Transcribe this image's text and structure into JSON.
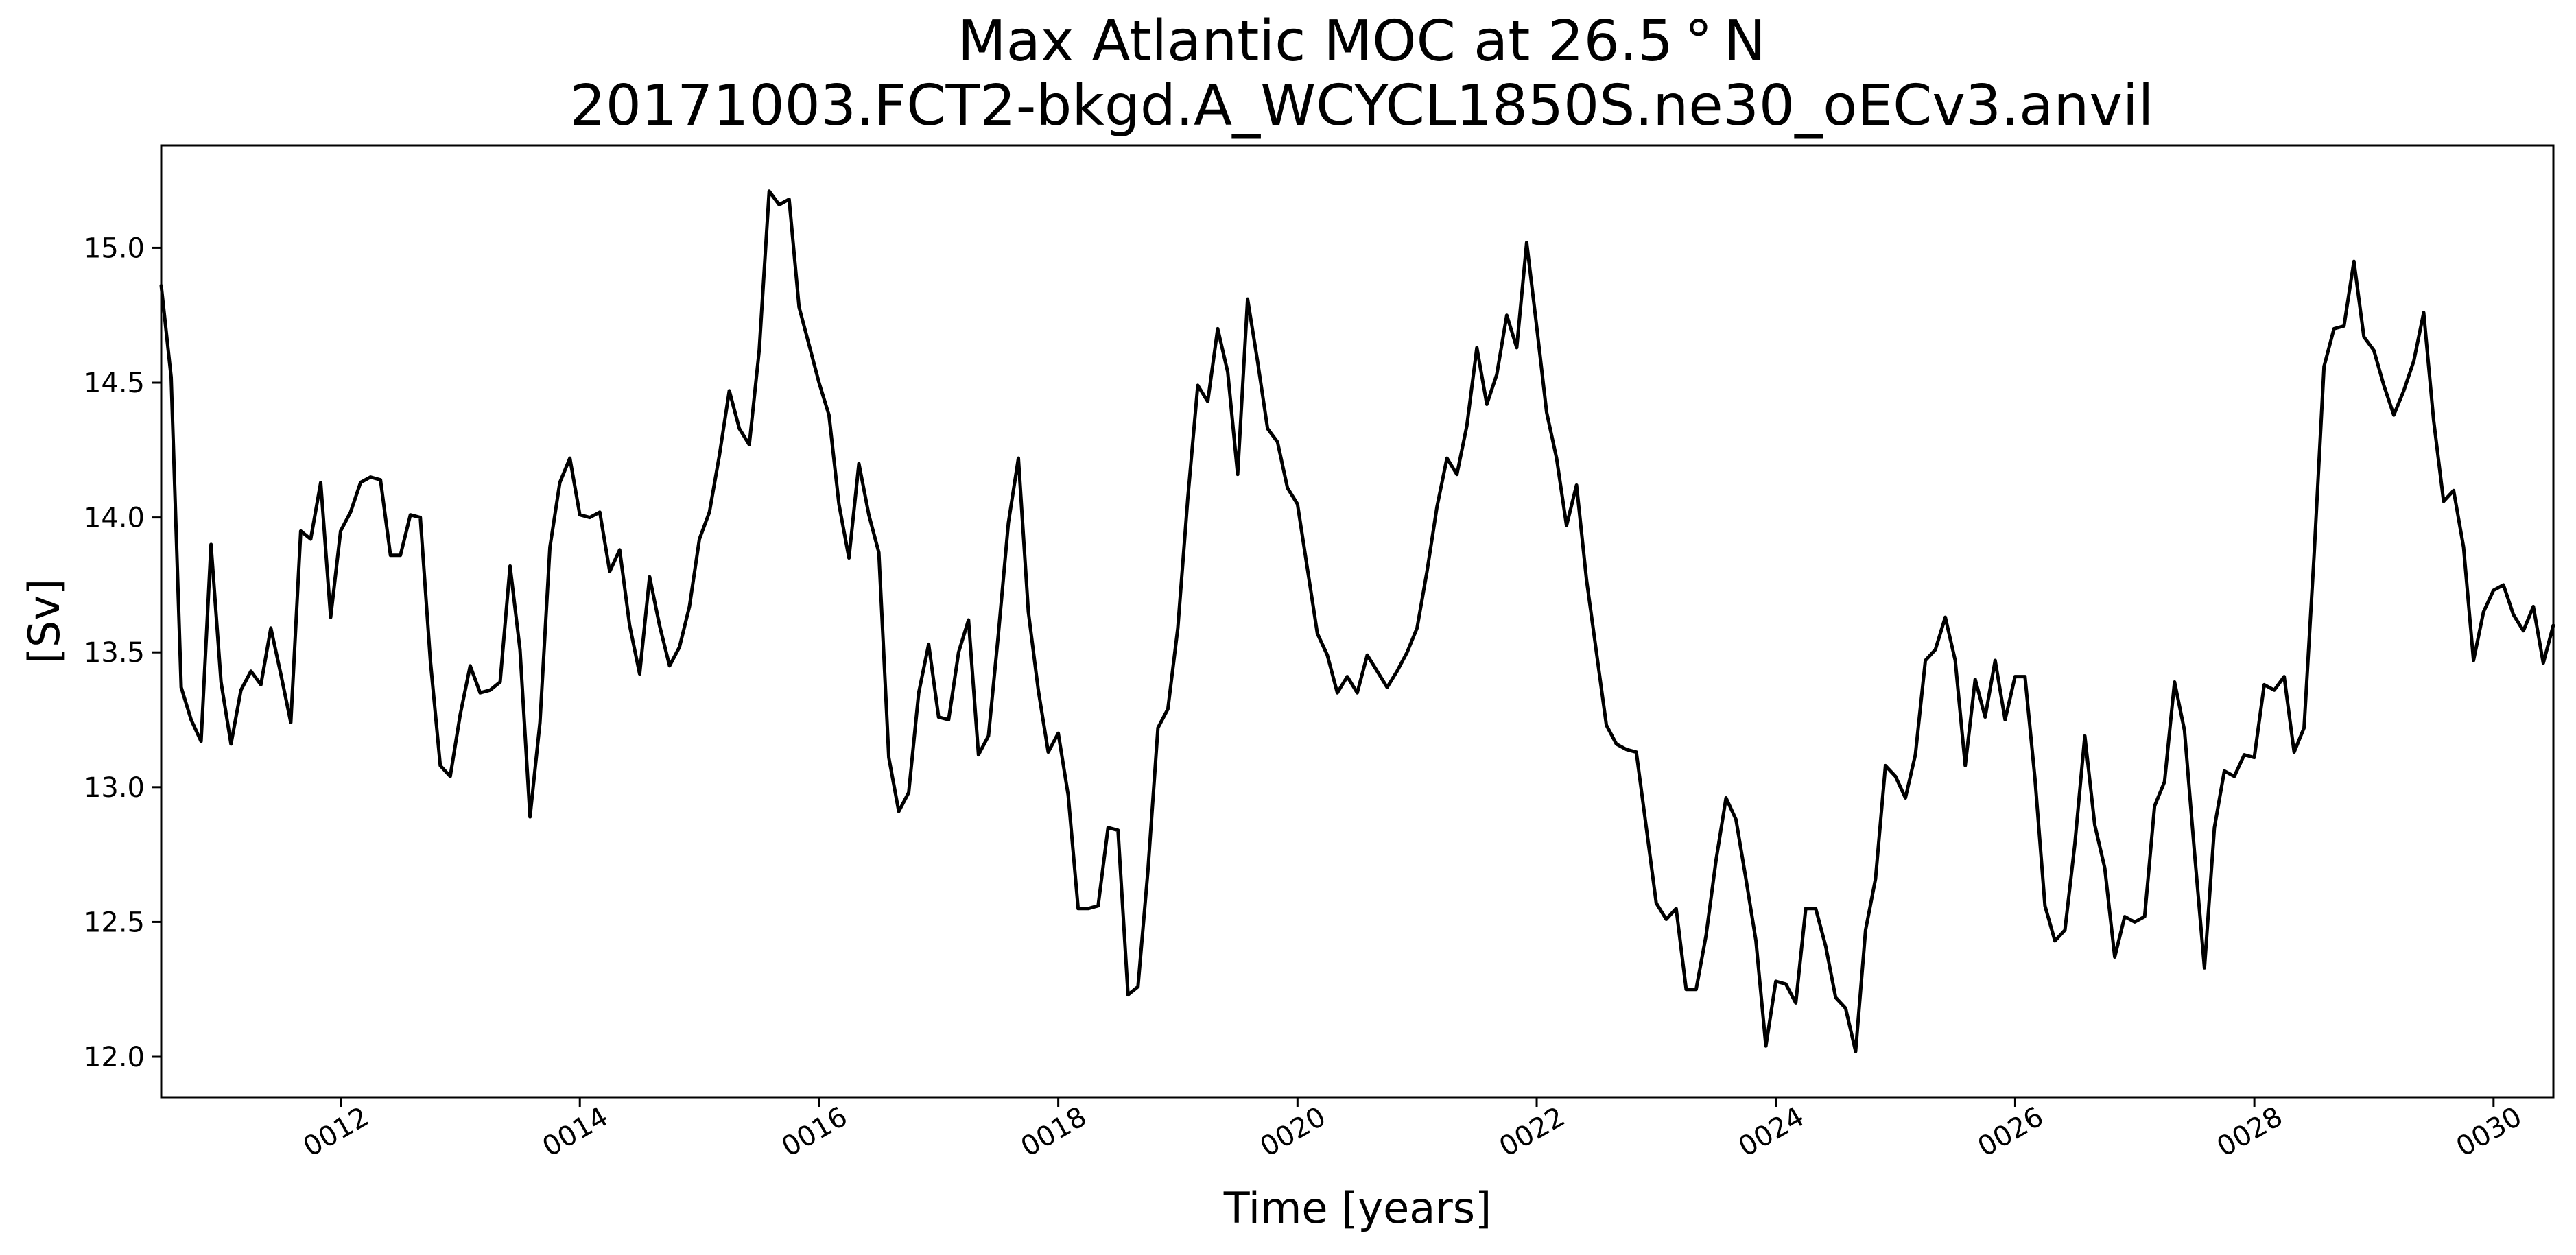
{
  "chart_data": {
    "type": "line",
    "title": "Max Atlantic MOC at 26.5$^\\circ$N",
    "title_display": "Max Atlantic MOC at 26.5 ° N",
    "subtitle": "20171003.FCT2-bkgd.A_WCYCL1850S.ne30_oECv3.anvil",
    "xlabel": "Time [years]",
    "ylabel": "[Sv]",
    "xlim": [
      10.5,
      30.5
    ],
    "ylim": [
      11.85,
      15.38
    ],
    "xticks": [
      {
        "value": 12,
        "label": "0012"
      },
      {
        "value": 14,
        "label": "0014"
      },
      {
        "value": 16,
        "label": "0016"
      },
      {
        "value": 18,
        "label": "0018"
      },
      {
        "value": 20,
        "label": "0020"
      },
      {
        "value": 22,
        "label": "0022"
      },
      {
        "value": 24,
        "label": "0024"
      },
      {
        "value": 26,
        "label": "0026"
      },
      {
        "value": 28,
        "label": "0028"
      },
      {
        "value": 30,
        "label": "0030"
      }
    ],
    "yticks": [
      {
        "value": 12.0,
        "label": "12.0"
      },
      {
        "value": 12.5,
        "label": "12.5"
      },
      {
        "value": 13.0,
        "label": "13.0"
      },
      {
        "value": 13.5,
        "label": "13.5"
      },
      {
        "value": 14.0,
        "label": "14.0"
      },
      {
        "value": 14.5,
        "label": "14.5"
      },
      {
        "value": 15.0,
        "label": "15.0"
      }
    ],
    "grid": false,
    "line_color": "#000000",
    "series": [
      {
        "name": "",
        "x_start": 10.5,
        "x_step": 0.08333,
        "values": [
          14.86,
          14.52,
          13.37,
          13.25,
          13.17,
          13.9,
          13.39,
          13.16,
          13.36,
          13.43,
          13.38,
          13.59,
          13.42,
          13.24,
          13.95,
          13.92,
          14.13,
          13.63,
          13.95,
          14.02,
          14.13,
          14.15,
          14.14,
          13.86,
          13.86,
          14.01,
          14.0,
          13.47,
          13.08,
          13.04,
          13.27,
          13.45,
          13.35,
          13.36,
          13.39,
          13.82,
          13.51,
          12.89,
          13.24,
          13.89,
          14.13,
          14.22,
          14.01,
          14.0,
          14.02,
          13.8,
          13.88,
          13.6,
          13.42,
          13.78,
          13.6,
          13.45,
          13.52,
          13.67,
          13.92,
          14.02,
          14.23,
          14.47,
          14.33,
          14.27,
          14.62,
          15.21,
          15.16,
          15.18,
          14.78,
          14.64,
          14.5,
          14.38,
          14.05,
          13.85,
          14.2,
          14.01,
          13.87,
          13.11,
          12.91,
          12.98,
          13.35,
          13.53,
          13.26,
          13.25,
          13.5,
          13.62,
          13.12,
          13.19,
          13.57,
          13.98,
          14.22,
          13.65,
          13.36,
          13.13,
          13.2,
          12.97,
          12.55,
          12.55,
          12.56,
          12.85,
          12.84,
          12.23,
          12.26,
          12.69,
          13.22,
          13.29,
          13.59,
          14.07,
          14.49,
          14.43,
          14.7,
          14.54,
          14.16,
          14.81,
          14.58,
          14.33,
          14.28,
          14.11,
          14.05,
          13.81,
          13.57,
          13.49,
          13.35,
          13.41,
          13.35,
          13.49,
          13.43,
          13.37,
          13.43,
          13.5,
          13.59,
          13.8,
          14.04,
          14.22,
          14.16,
          14.34,
          14.63,
          14.42,
          14.53,
          14.75,
          14.63,
          15.02,
          14.71,
          14.39,
          14.22,
          13.97,
          14.12,
          13.77,
          13.5,
          13.23,
          13.16,
          13.14,
          13.13,
          12.85,
          12.57,
          12.51,
          12.55,
          12.25,
          12.25,
          12.45,
          12.73,
          12.96,
          12.88,
          12.66,
          12.43,
          12.04,
          12.28,
          12.27,
          12.2,
          12.55,
          12.55,
          12.41,
          12.22,
          12.18,
          12.02,
          12.47,
          12.66,
          13.08,
          13.04,
          12.96,
          13.12,
          13.47,
          13.51,
          13.63,
          13.47,
          13.08,
          13.4,
          13.26,
          13.47,
          13.25,
          13.41,
          13.41,
          13.03,
          12.56,
          12.43,
          12.47,
          12.79,
          13.19,
          12.86,
          12.7,
          12.37,
          12.52,
          12.5,
          12.52,
          12.93,
          13.02,
          13.39,
          13.21,
          12.76,
          12.33,
          12.85,
          13.06,
          13.04,
          13.12,
          13.11,
          13.38,
          13.36,
          13.41,
          13.13,
          13.22,
          13.86,
          14.56,
          14.7,
          14.71,
          14.95,
          14.67,
          14.62,
          14.49,
          14.38,
          14.47,
          14.58,
          14.76,
          14.36,
          14.06,
          14.1,
          13.89,
          13.47,
          13.65,
          13.73,
          13.75,
          13.64,
          13.58,
          13.67,
          13.46,
          13.6
        ]
      }
    ]
  }
}
